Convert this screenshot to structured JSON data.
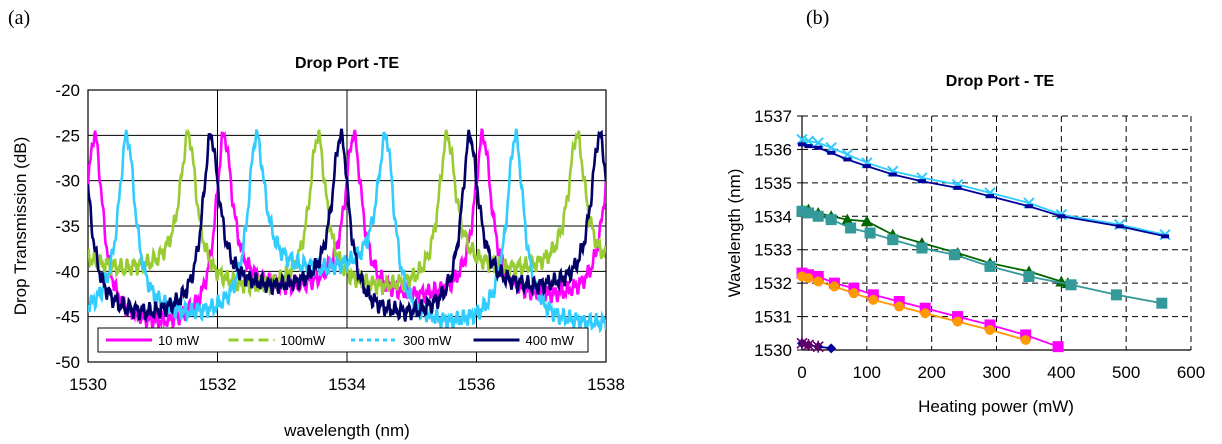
{
  "panels": [
    {
      "label": "(a)"
    },
    {
      "label": "(b)"
    }
  ],
  "chart_data": [
    {
      "type": "line",
      "title": "Drop Port  -TE",
      "xlabel": "wavelength (nm)",
      "ylabel": "Drop Transmission (dB)",
      "xlim": [
        1530,
        1538
      ],
      "ylim": [
        -50,
        -20
      ],
      "xticks": [
        1530,
        1532,
        1534,
        1536,
        1538
      ],
      "yticks": [
        -50,
        -45,
        -40,
        -35,
        -30,
        -25,
        -20
      ],
      "grid": true,
      "legend": "bottom-inside",
      "series": [
        {
          "name": "10 mW",
          "color": "#ff00ff",
          "style": "solid",
          "peaks": [
            1530.1,
            1532.1,
            1534.1,
            1536.1,
            1538.1
          ],
          "fsr": 2.0,
          "valleys": [
            [
              1531.1,
              -46
            ],
            [
              1533.1,
              -42
            ],
            [
              1535.2,
              -43
            ],
            [
              1537.2,
              -43
            ]
          ]
        },
        {
          "name": "100mW",
          "color": "#99cc33",
          "style": "dashed",
          "peaks": [
            1529.55,
            1531.55,
            1533.55,
            1535.55,
            1537.55
          ],
          "fsr": 2.0,
          "valleys": [
            [
              1530.6,
              -40
            ],
            [
              1532.6,
              -42
            ],
            [
              1534.6,
              -42
            ],
            [
              1536.6,
              -40
            ]
          ]
        },
        {
          "name": "300 mW",
          "color": "#33ccff",
          "style": "dotted",
          "peaks": [
            1530.6,
            1532.6,
            1534.6,
            1536.6
          ],
          "fsr": 2.0,
          "valleys": [
            [
              1531.6,
              -45
            ],
            [
              1533.6,
              -40
            ],
            [
              1535.6,
              -46
            ],
            [
              1537.6,
              -46
            ]
          ]
        },
        {
          "name": "400 mW",
          "color": "#000066",
          "style": "dashdot",
          "peaks": [
            1529.9,
            1531.9,
            1533.9,
            1535.9,
            1537.9
          ],
          "fsr": 2.0,
          "valleys": [
            [
              1531.0,
              -45
            ],
            [
              1533.0,
              -42
            ],
            [
              1535.0,
              -45
            ],
            [
              1537.0,
              -42
            ]
          ]
        }
      ]
    },
    {
      "type": "line",
      "title": "Drop Port - TE",
      "xlabel": "Heating power (mW)",
      "ylabel": "Wavelength (nm)",
      "xlim": [
        0,
        600
      ],
      "ylim": [
        1530,
        1537
      ],
      "xticks": [
        0,
        100,
        200,
        300,
        400,
        500,
        600
      ],
      "yticks": [
        1530,
        1531,
        1532,
        1533,
        1534,
        1535,
        1536,
        1537
      ],
      "grid": "dashed",
      "series": [
        {
          "color": "#33ccff",
          "marker": "x",
          "x": [
            0,
            10,
            25,
            45,
            70,
            100,
            140,
            185,
            240,
            290,
            350,
            400,
            490,
            560
          ],
          "y": [
            1536.3,
            1536.25,
            1536.2,
            1536.05,
            1535.85,
            1535.6,
            1535.35,
            1535.15,
            1534.95,
            1534.7,
            1534.4,
            1534.05,
            1533.75,
            1533.45
          ]
        },
        {
          "color": "#000099",
          "marker": "dash",
          "x": [
            0,
            10,
            25,
            45,
            70,
            100,
            140,
            185,
            240,
            290,
            350,
            400,
            490,
            560
          ],
          "y": [
            1536.15,
            1536.1,
            1536.05,
            1535.9,
            1535.7,
            1535.5,
            1535.25,
            1535.05,
            1534.85,
            1534.6,
            1534.3,
            1534.0,
            1533.7,
            1533.4
          ]
        },
        {
          "color": "#006600",
          "marker": "triangle",
          "x": [
            0,
            10,
            25,
            45,
            70,
            100,
            140,
            185,
            240,
            290,
            350,
            400,
            410
          ],
          "y": [
            1534.2,
            1534.2,
            1534.1,
            1534.0,
            1533.9,
            1533.85,
            1533.45,
            1533.2,
            1532.9,
            1532.6,
            1532.35,
            1532.05,
            1532.0
          ]
        },
        {
          "color": "#339999",
          "marker": "square",
          "x": [
            0,
            10,
            25,
            45,
            75,
            105,
            140,
            185,
            235,
            290,
            350,
            415,
            485,
            555
          ],
          "y": [
            1534.15,
            1534.1,
            1534.0,
            1533.9,
            1533.65,
            1533.5,
            1533.3,
            1533.05,
            1532.85,
            1532.5,
            1532.2,
            1531.95,
            1531.65,
            1531.4
          ]
        },
        {
          "color": "#ff00ff",
          "marker": "square",
          "x": [
            0,
            10,
            25,
            50,
            80,
            110,
            150,
            190,
            240,
            290,
            345,
            395
          ],
          "y": [
            1532.3,
            1532.25,
            1532.2,
            1532.0,
            1531.85,
            1531.65,
            1531.45,
            1531.25,
            1531.0,
            1530.75,
            1530.45,
            1530.1
          ]
        },
        {
          "color": "#ff9900",
          "marker": "circle",
          "x": [
            0,
            10,
            25,
            50,
            80,
            110,
            150,
            190,
            240,
            290,
            345
          ],
          "y": [
            1532.2,
            1532.15,
            1532.05,
            1531.9,
            1531.7,
            1531.5,
            1531.3,
            1531.1,
            1530.85,
            1530.6,
            1530.3
          ]
        },
        {
          "color": "#000099",
          "marker": "diamond",
          "x": [
            0,
            10,
            25,
            45
          ],
          "y": [
            1530.2,
            1530.15,
            1530.1,
            1530.05
          ]
        },
        {
          "color": "#660066",
          "marker": "star",
          "x": [
            0,
            10,
            25
          ],
          "y": [
            1530.2,
            1530.15,
            1530.1
          ]
        }
      ]
    }
  ]
}
